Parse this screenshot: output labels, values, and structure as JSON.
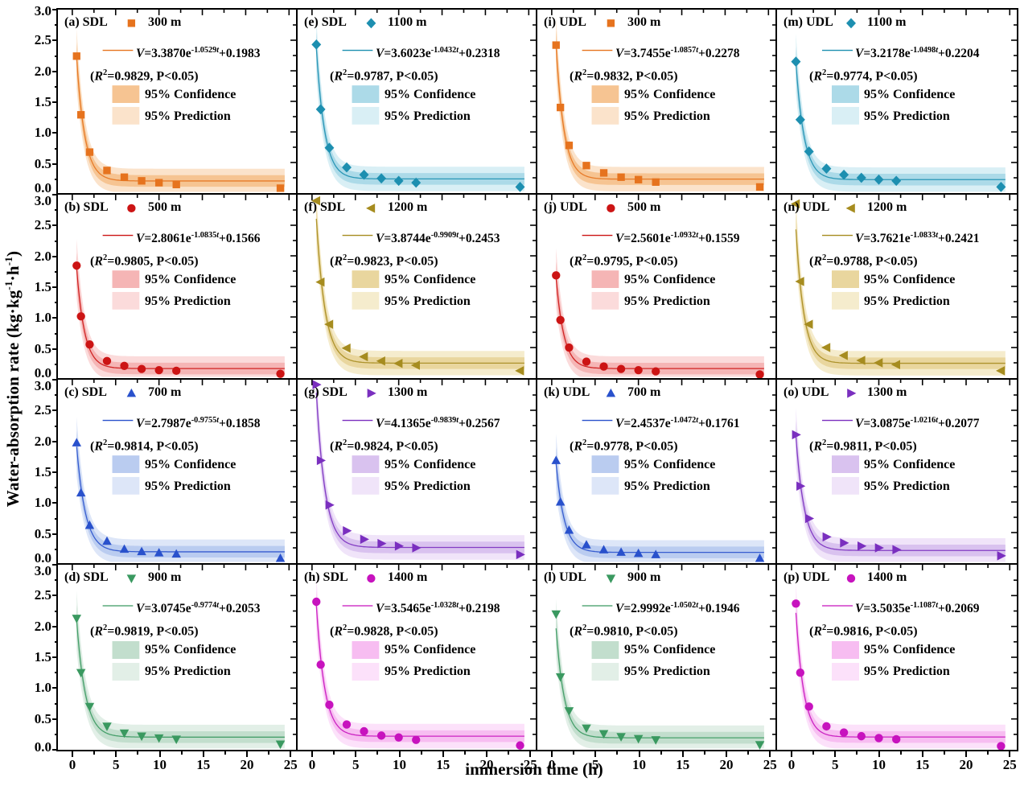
{
  "figure": {
    "xlabel": "immersion time (h)",
    "ylabel_parts": {
      "pre": "Water-absorption rate (kg·kg",
      "sup1": "-1",
      "mid": "·h",
      "sup2": "-1",
      "post": ")"
    },
    "x_tick_labels": [
      "0",
      "5",
      "10",
      "15",
      "20",
      "25"
    ],
    "y_tick_labels": [
      "3.0",
      "2.5",
      "2.0",
      "1.5",
      "1.0",
      "0.5",
      "0.0"
    ],
    "conf_label": "95% Confidence",
    "pred_label": "95% Prediction",
    "p_label": "P<0.05",
    "symbols": {
      "v_var": "V",
      "equals": "=",
      "e_sym": "e",
      "t_var": "t",
      "open_paren": "(",
      "r_var": "R",
      "sup_two": "2",
      "comma": ", ",
      "close_paren": ")"
    }
  },
  "chart_data": {
    "type": "scatter",
    "title": "",
    "xlabel": "immersion time (h)",
    "ylabel": "Water-absorption rate (kg·kg-1·h-1)",
    "xlim": [
      0,
      25
    ],
    "ylim": [
      0.0,
      3.0
    ],
    "x_ticks": [
      0,
      5,
      10,
      15,
      20,
      25
    ],
    "y_ticks": [
      0.0,
      0.5,
      1.0,
      1.5,
      2.0,
      2.5,
      3.0
    ],
    "x": [
      0.5,
      1,
      2,
      4,
      6,
      8,
      10,
      12,
      24
    ],
    "fit_model": "V = A*exp(-k*t) + c, with 95% confidence and 95% prediction bands",
    "panels": [
      {
        "id": "a",
        "label": "(a) SDL",
        "group": "SDL",
        "depth": "300 m",
        "marker": "square",
        "color": "#E6731E",
        "conf_color": "#F6C492",
        "pred_color": "#FBE3CB",
        "amp": "3.3870",
        "exp": "-1.0529",
        "offset": "+0.1983",
        "r2": "0.9829",
        "A": 3.387,
        "k": 1.0529,
        "c": 0.1983,
        "y": [
          2.24,
          1.28,
          0.67,
          0.37,
          0.26,
          0.2,
          0.17,
          0.14,
          0.08
        ]
      },
      {
        "id": "e",
        "label": "(e) SDL",
        "group": "SDL",
        "depth": "1100 m",
        "marker": "diamond",
        "color": "#1D8FB0",
        "conf_color": "#ACDAE8",
        "pred_color": "#D9EFF5",
        "amp": "3.6023",
        "exp": "-1.0432",
        "offset": "+0.2318",
        "r2": "0.9787",
        "A": 3.6023,
        "k": 1.0432,
        "c": 0.2318,
        "y": [
          2.43,
          1.37,
          0.74,
          0.42,
          0.3,
          0.24,
          0.2,
          0.17,
          0.1
        ]
      },
      {
        "id": "i",
        "label": "(i) UDL",
        "group": "UDL",
        "depth": "300 m",
        "marker": "square",
        "color": "#E6731E",
        "conf_color": "#F6C492",
        "pred_color": "#FBE3CB",
        "amp": "3.7455",
        "exp": "-1.0857",
        "offset": "+0.2278",
        "r2": "0.9832",
        "A": 3.7455,
        "k": 1.0857,
        "c": 0.2278,
        "y": [
          2.42,
          1.4,
          0.78,
          0.45,
          0.33,
          0.26,
          0.22,
          0.18,
          0.1
        ]
      },
      {
        "id": "m",
        "label": "(m) UDL",
        "group": "UDL",
        "depth": "1100 m",
        "marker": "diamond",
        "color": "#1D8FB0",
        "conf_color": "#ACDAE8",
        "pred_color": "#D9EFF5",
        "amp": "3.2178",
        "exp": "-1.0498",
        "offset": "+0.2204",
        "r2": "0.9774",
        "A": 3.2178,
        "k": 1.0498,
        "c": 0.2204,
        "y": [
          2.15,
          1.2,
          0.68,
          0.4,
          0.3,
          0.25,
          0.22,
          0.2,
          0.1
        ]
      },
      {
        "id": "b",
        "label": "(b) SDL",
        "group": "SDL",
        "depth": "500 m",
        "marker": "circle",
        "color": "#CC1414",
        "conf_color": "#F5B5B5",
        "pred_color": "#FBDBDB",
        "amp": "2.8061",
        "exp": "-1.0835",
        "offset": "+0.1566",
        "r2": "0.9805",
        "A": 2.8061,
        "k": 1.0835,
        "c": 0.1566,
        "y": [
          1.84,
          1.01,
          0.55,
          0.28,
          0.2,
          0.15,
          0.13,
          0.12,
          0.07
        ]
      },
      {
        "id": "f",
        "label": "(f) SDL",
        "group": "SDL",
        "depth": "1200 m",
        "marker": "tri-left",
        "color": "#A68C1F",
        "conf_color": "#E9D69E",
        "pred_color": "#F5ECCD",
        "amp": "3.8744",
        "exp": "-0.9909",
        "offset": "+0.2453",
        "r2": "0.9823",
        "A": 3.8744,
        "k": 0.9909,
        "c": 0.2453,
        "y": [
          2.9,
          1.57,
          0.88,
          0.49,
          0.35,
          0.28,
          0.24,
          0.21,
          0.12
        ]
      },
      {
        "id": "j",
        "label": "(j) UDL",
        "group": "UDL",
        "depth": "500 m",
        "marker": "circle",
        "color": "#CC1414",
        "conf_color": "#F5B5B5",
        "pred_color": "#FBDBDB",
        "amp": "2.5601",
        "exp": "-1.0932",
        "offset": "+0.1559",
        "r2": "0.9795",
        "A": 2.5601,
        "k": 1.0932,
        "c": 0.1559,
        "y": [
          1.68,
          0.95,
          0.5,
          0.27,
          0.19,
          0.15,
          0.13,
          0.11,
          0.06
        ]
      },
      {
        "id": "n",
        "label": "(n) UDL",
        "group": "UDL",
        "depth": "1200 m",
        "marker": "tri-left",
        "color": "#A68C1F",
        "conf_color": "#E9D69E",
        "pred_color": "#F5ECCD",
        "amp": "3.7621",
        "exp": "-1.0833",
        "offset": "+0.2421",
        "r2": "0.9788",
        "A": 3.7621,
        "k": 1.0833,
        "c": 0.2421,
        "y": [
          2.85,
          1.58,
          0.88,
          0.5,
          0.37,
          0.29,
          0.25,
          0.22,
          0.12
        ]
      },
      {
        "id": "c",
        "label": "(c) SDL",
        "group": "SDL",
        "depth": "700 m",
        "marker": "tri-up",
        "color": "#2951CC",
        "conf_color": "#BACCF0",
        "pred_color": "#DDE6F8",
        "amp": "2.7987",
        "exp": "-0.9755",
        "offset": "+0.1858",
        "r2": "0.9814",
        "A": 2.7987,
        "k": 0.9755,
        "c": 0.1858,
        "y": [
          1.97,
          1.15,
          0.62,
          0.36,
          0.23,
          0.19,
          0.17,
          0.15,
          0.08
        ]
      },
      {
        "id": "g",
        "label": "(g) SDL",
        "group": "SDL",
        "depth": "1300 m",
        "marker": "tri-right",
        "color": "#7A2FBF",
        "conf_color": "#D9C2EF",
        "pred_color": "#F0E4F9",
        "amp": "4.1365",
        "exp": "-0.9839",
        "offset": "+0.2567",
        "r2": "0.9824",
        "A": 4.1365,
        "k": 0.9839,
        "c": 0.2567,
        "y": [
          2.92,
          1.68,
          0.95,
          0.53,
          0.39,
          0.32,
          0.28,
          0.25,
          0.14
        ]
      },
      {
        "id": "k",
        "label": "(k) UDL",
        "group": "UDL",
        "depth": "700 m",
        "marker": "tri-up",
        "color": "#2951CC",
        "conf_color": "#BACCF0",
        "pred_color": "#DDE6F8",
        "amp": "2.4537",
        "exp": "-1.0472",
        "offset": "+0.1761",
        "r2": "0.9778",
        "A": 2.4537,
        "k": 1.0472,
        "c": 0.1761,
        "y": [
          1.68,
          1.0,
          0.54,
          0.3,
          0.22,
          0.18,
          0.16,
          0.14,
          0.08
        ]
      },
      {
        "id": "o",
        "label": "(o) UDL",
        "group": "UDL",
        "depth": "1300 m",
        "marker": "tri-right",
        "color": "#7A2FBF",
        "conf_color": "#D9C2EF",
        "pred_color": "#F0E4F9",
        "amp": "3.0875",
        "exp": "-1.0216",
        "offset": "+0.2077",
        "r2": "0.9811",
        "A": 3.0875,
        "k": 1.0216,
        "c": 0.2077,
        "y": [
          2.1,
          1.26,
          0.73,
          0.43,
          0.33,
          0.28,
          0.25,
          0.22,
          0.12
        ]
      },
      {
        "id": "d",
        "label": "(d) SDL",
        "group": "SDL",
        "depth": "900 m",
        "marker": "tri-down",
        "color": "#3A9960",
        "conf_color": "#C2DECD",
        "pred_color": "#E2EFE7",
        "amp": "3.0745",
        "exp": "-0.9774",
        "offset": "+0.2053",
        "r2": "0.9819",
        "A": 3.0745,
        "k": 0.9774,
        "c": 0.2053,
        "y": [
          2.13,
          1.25,
          0.7,
          0.38,
          0.27,
          0.22,
          0.19,
          0.17,
          0.09
        ]
      },
      {
        "id": "h",
        "label": "(h) SDL",
        "group": "SDL",
        "depth": "1400 m",
        "marker": "circle",
        "color": "#C713BE",
        "conf_color": "#F7BDF1",
        "pred_color": "#FCE1FA",
        "amp": "3.5465",
        "exp": "-1.0328",
        "offset": "+0.2198",
        "r2": "0.9828",
        "A": 3.5465,
        "k": 1.0328,
        "c": 0.2198,
        "y": [
          2.4,
          1.38,
          0.73,
          0.41,
          0.3,
          0.23,
          0.2,
          0.16,
          0.07
        ]
      },
      {
        "id": "l",
        "label": "(l) UDL",
        "group": "UDL",
        "depth": "900 m",
        "marker": "tri-down",
        "color": "#3A9960",
        "conf_color": "#C2DECD",
        "pred_color": "#E2EFE7",
        "amp": "2.9992",
        "exp": "-1.0502",
        "offset": "+0.1946",
        "r2": "0.9810",
        "A": 2.9992,
        "k": 1.0502,
        "c": 0.1946,
        "y": [
          2.2,
          1.18,
          0.63,
          0.35,
          0.26,
          0.21,
          0.18,
          0.16,
          0.08
        ]
      },
      {
        "id": "p",
        "label": "(p) UDL",
        "group": "UDL",
        "depth": "1400 m",
        "marker": "circle",
        "color": "#C713BE",
        "conf_color": "#F7BDF1",
        "pred_color": "#FCE1FA",
        "amp": "3.5035",
        "exp": "-1.1087",
        "offset": "+0.2069",
        "r2": "0.9816",
        "A": 3.5035,
        "k": 1.1087,
        "c": 0.2069,
        "y": [
          2.37,
          1.25,
          0.7,
          0.38,
          0.28,
          0.22,
          0.19,
          0.17,
          0.06
        ]
      }
    ]
  }
}
